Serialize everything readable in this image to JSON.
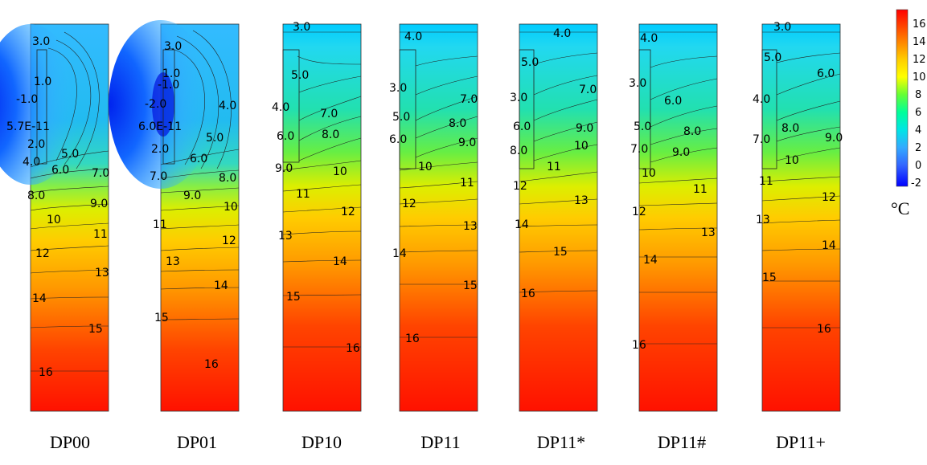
{
  "colorbar": {
    "ticks": [
      "16",
      "14",
      "12",
      "10",
      "8",
      "6",
      "4",
      "2",
      "0",
      "-2"
    ],
    "unit": "°C",
    "colors": [
      "#ff0000",
      "#ff6600",
      "#ffcc00",
      "#ffff00",
      "#66ff33",
      "#00ff99",
      "#00e5e5",
      "#33aaff",
      "#3366ff",
      "#0000ff"
    ]
  },
  "panels": [
    {
      "name": "DP00",
      "contour_labels": [
        "3.0",
        "1.0",
        "-1.0",
        "5.7E-11",
        "2.0",
        "4.0",
        "5.0",
        "6.0",
        "7.0",
        "8.0",
        "9.0",
        "10",
        "11",
        "12",
        "13",
        "14",
        "15",
        "16"
      ]
    },
    {
      "name": "DP01",
      "contour_labels": [
        "3.0",
        "1.0",
        "-1.0",
        "-2.0",
        "4.0",
        "6.0E-11",
        "5.0",
        "2.0",
        "6.0",
        "7.0",
        "8.0",
        "9.0",
        "10",
        "11",
        "12",
        "13",
        "14",
        "15",
        "16"
      ]
    },
    {
      "name": "DP10",
      "contour_labels": [
        "3.0",
        "5.0",
        "4.0",
        "7.0",
        "6.0",
        "8.0",
        "9.0",
        "10",
        "11",
        "12",
        "13",
        "14",
        "15",
        "16"
      ]
    },
    {
      "name": "DP11",
      "contour_labels": [
        "4.0",
        "3.0",
        "7.0",
        "5.0",
        "8.0",
        "6.0",
        "9.0",
        "10",
        "11",
        "12",
        "13",
        "14",
        "15",
        "16"
      ]
    },
    {
      "name": "DP11*",
      "contour_labels": [
        "4.0",
        "5.0",
        "7.0",
        "3.0",
        "6.0",
        "9.0",
        "10",
        "8.0",
        "11",
        "12",
        "13",
        "14",
        "15",
        "16"
      ]
    },
    {
      "name": "DP11#",
      "contour_labels": [
        "4.0",
        "3.0",
        "6.0",
        "5.0",
        "8.0",
        "7.0",
        "9.0",
        "10",
        "11",
        "12",
        "13",
        "14",
        "16"
      ]
    },
    {
      "name": "DP11+",
      "contour_labels": [
        "3.0",
        "5.0",
        "6.0",
        "4.0",
        "8.0",
        "7.0",
        "9.0",
        "10",
        "11",
        "12",
        "13",
        "14",
        "15",
        "16"
      ]
    }
  ]
}
